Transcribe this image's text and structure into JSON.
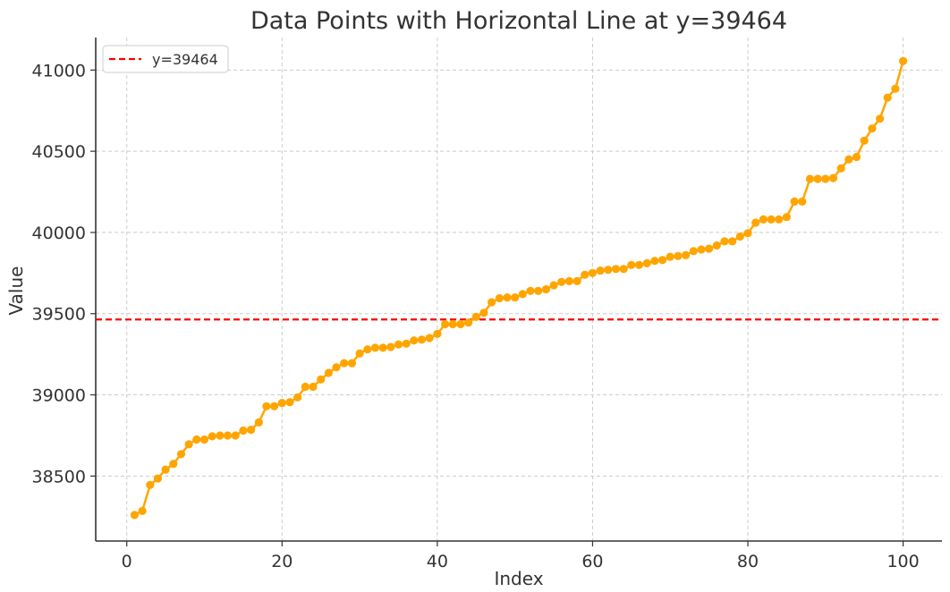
{
  "chart_data": {
    "type": "line",
    "title": "Data Points with Horizontal Line at y=39464",
    "xlabel": "Index",
    "ylabel": "Value",
    "xlim": [
      -4,
      105
    ],
    "ylim": [
      38100,
      41200
    ],
    "xticks": [
      0,
      20,
      40,
      60,
      80,
      100
    ],
    "yticks": [
      38500,
      39000,
      39500,
      40000,
      40500,
      41000
    ],
    "grid": true,
    "legend_position": "top-left",
    "hline": {
      "y": 39464,
      "label": "y=39464",
      "color": "#ff0000",
      "style": "dashed"
    },
    "series": [
      {
        "color": "#ffa500",
        "marker": "circle",
        "x": [
          1,
          2,
          3,
          4,
          5,
          6,
          7,
          8,
          9,
          10,
          11,
          12,
          13,
          14,
          15,
          16,
          17,
          18,
          19,
          20,
          21,
          22,
          23,
          24,
          25,
          26,
          27,
          28,
          29,
          30,
          31,
          32,
          33,
          34,
          35,
          36,
          37,
          38,
          39,
          40,
          41,
          42,
          43,
          44,
          45,
          46,
          47,
          48,
          49,
          50,
          51,
          52,
          53,
          54,
          55,
          56,
          57,
          58,
          59,
          60,
          61,
          62,
          63,
          64,
          65,
          66,
          67,
          68,
          69,
          70,
          71,
          72,
          73,
          74,
          75,
          76,
          77,
          78,
          79,
          80,
          81,
          82,
          83,
          84,
          85,
          86,
          87,
          88,
          89,
          90,
          91,
          92,
          93,
          94,
          95,
          96,
          97,
          98,
          99,
          100
        ],
        "values": [
          38260,
          38285,
          38445,
          38485,
          38540,
          38575,
          38635,
          38695,
          38725,
          38725,
          38745,
          38750,
          38750,
          38750,
          38780,
          38785,
          38830,
          38930,
          38930,
          38950,
          38955,
          38985,
          39050,
          39050,
          39095,
          39135,
          39170,
          39195,
          39195,
          39255,
          39280,
          39290,
          39290,
          39295,
          39310,
          39315,
          39335,
          39340,
          39350,
          39375,
          39435,
          39435,
          39435,
          39445,
          39480,
          39505,
          39570,
          39595,
          39600,
          39600,
          39620,
          39640,
          39640,
          39650,
          39675,
          39695,
          39700,
          39700,
          39740,
          39750,
          39765,
          39770,
          39775,
          39775,
          39800,
          39800,
          39810,
          39825,
          39830,
          39850,
          39855,
          39860,
          39885,
          39895,
          39900,
          39920,
          39945,
          39945,
          39975,
          39995,
          40060,
          40080,
          40080,
          40080,
          40095,
          40190,
          40190,
          40330,
          40330,
          40330,
          40335,
          40395,
          40450,
          40465,
          40565,
          40640,
          40700,
          40830,
          40885,
          41055
        ]
      }
    ]
  }
}
